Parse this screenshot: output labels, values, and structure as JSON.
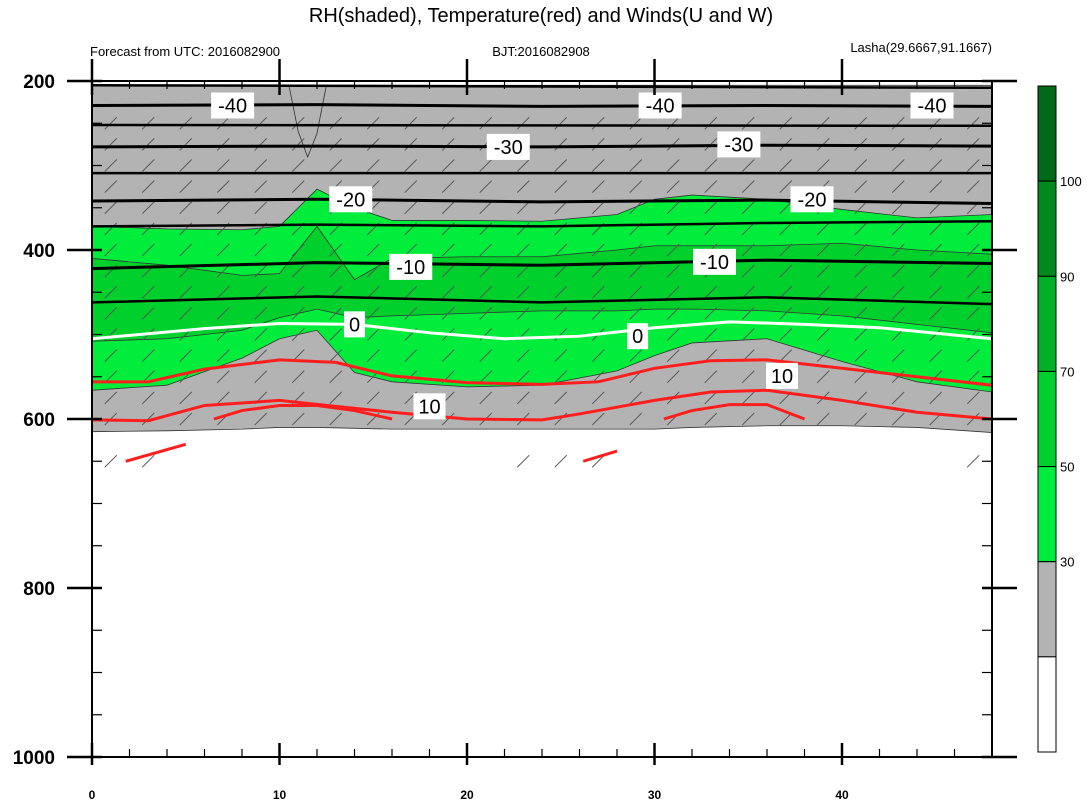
{
  "chart_data": {
    "type": "contour-cross-section",
    "title": "RH(shaded), Temperature(red) and Winds(U and W)",
    "subtitle_left": "Forecast from UTC: 2016082900",
    "subtitle_center": "BJT:2016082908",
    "subtitle_right": "Lasha(29.6667,91.1667)",
    "x_ticks": [
      0,
      10,
      20,
      30,
      40
    ],
    "y_ticks": [
      200,
      400,
      600,
      800,
      1000
    ],
    "xlim": [
      0,
      48
    ],
    "ylim": [
      200,
      1000
    ],
    "y_inverted": true,
    "x_minor_step": 2,
    "y_minor_step": 50,
    "colorbar": {
      "levels": [
        30,
        50,
        70,
        90,
        100
      ],
      "colors": [
        "#ffffff",
        "#b3b3b3",
        "#00ee3b",
        "#00d02c",
        "#00b026",
        "#008a1e",
        "#006a17"
      ]
    },
    "rh_regions": [
      {
        "level": 30,
        "color": "#b3b3b3",
        "x": [
          0,
          4,
          8,
          10,
          12,
          16,
          20,
          22,
          26,
          30,
          32,
          36,
          40,
          44,
          48
        ],
        "top": [
          205,
          205,
          205,
          205,
          205,
          205,
          205,
          205,
          205,
          205,
          205,
          205,
          205,
          205,
          205
        ],
        "bottom": [
          615,
          614,
          612,
          610,
          610,
          612,
          612,
          612,
          612,
          612,
          610,
          608,
          608,
          610,
          616
        ]
      },
      {
        "level": 50,
        "color": "#00ee3b",
        "x": [
          0,
          4,
          8,
          10,
          12,
          14,
          16,
          20,
          24,
          28,
          30,
          32,
          36,
          40,
          44,
          48
        ],
        "top": [
          372,
          375,
          376,
          372,
          328,
          350,
          365,
          365,
          366,
          358,
          340,
          335,
          340,
          352,
          362,
          358
        ],
        "bottom": [
          566,
          560,
          528,
          505,
          495,
          545,
          556,
          562,
          560,
          543,
          525,
          510,
          505,
          532,
          556,
          568
        ]
      },
      {
        "level": 70,
        "color": "#00d02c",
        "x": [
          0,
          4,
          8,
          10,
          12,
          14,
          16,
          20,
          24,
          28,
          30,
          32,
          36,
          40,
          44,
          48
        ],
        "top": [
          410,
          418,
          430,
          428,
          372,
          435,
          410,
          408,
          408,
          400,
          395,
          395,
          395,
          392,
          400,
          405
        ],
        "bottom": [
          508,
          505,
          495,
          480,
          470,
          480,
          478,
          475,
          472,
          472,
          470,
          470,
          472,
          478,
          488,
          498
        ]
      }
    ],
    "gray_patches": [
      {
        "x": [
          10.5,
          11,
          11.5,
          12,
          12.5
        ],
        "top": [
          205,
          205,
          205,
          205,
          205
        ],
        "bottom": [
          205,
          260,
          290,
          262,
          205
        ]
      }
    ],
    "temperature_lines": [
      {
        "value": -40,
        "color": "#000000",
        "labeled": true,
        "x": [
          0,
          12,
          24,
          36,
          48
        ],
        "y": [
          229,
          228,
          230,
          229,
          230
        ]
      },
      {
        "value": -30,
        "color": "#000000",
        "labeled": true,
        "x": [
          0,
          12,
          24,
          36,
          48
        ],
        "y": [
          278,
          277,
          278,
          276,
          277
        ]
      },
      {
        "value": -20,
        "color": "#000000",
        "labeled": true,
        "x": [
          0,
          12,
          24,
          36,
          48
        ],
        "y": [
          342,
          340,
          343,
          341,
          345
        ]
      },
      {
        "value": -10,
        "color": "#000000",
        "labeled": true,
        "x": [
          0,
          12,
          24,
          36,
          48
        ],
        "y": [
          422,
          415,
          418,
          412,
          416
        ]
      },
      {
        "value": 0,
        "color": "#ffffff",
        "labeled": true,
        "x": [
          0,
          6,
          10,
          14,
          18,
          22,
          26,
          30,
          34,
          38,
          42,
          48
        ],
        "y": [
          505,
          493,
          487,
          488,
          498,
          505,
          502,
          492,
          485,
          488,
          492,
          505
        ]
      },
      {
        "value": 10,
        "color": "#ff1e1e",
        "labeled": true,
        "x": [
          0,
          3,
          6,
          10,
          13,
          16,
          20,
          24,
          27,
          30,
          33,
          36,
          40,
          44,
          48
        ],
        "y": [
          556,
          556,
          541,
          530,
          533,
          549,
          557,
          559,
          556,
          540,
          531,
          530,
          540,
          550,
          560
        ]
      }
    ],
    "extra_lines": [
      {
        "color": "#000000",
        "width": 2.5,
        "x": [
          0,
          48
        ],
        "y": [
          205,
          208
        ]
      },
      {
        "color": "#000000",
        "width": 2.5,
        "x": [
          0,
          48
        ],
        "y": [
          252,
          253
        ]
      },
      {
        "color": "#000000",
        "width": 2.5,
        "x": [
          0,
          48
        ],
        "y": [
          309,
          309
        ]
      },
      {
        "color": "#000000",
        "width": 2.5,
        "x": [
          0,
          12,
          24,
          36,
          48
        ],
        "y": [
          372,
          370,
          372,
          368,
          366
        ]
      },
      {
        "color": "#000000",
        "width": 2.5,
        "x": [
          0,
          12,
          24,
          36,
          48
        ],
        "y": [
          462,
          455,
          462,
          456,
          464
        ]
      },
      {
        "color": "#ff1e1e",
        "width": 3,
        "x": [
          0,
          3,
          6,
          10,
          13,
          16,
          20,
          24,
          26,
          30,
          33,
          36,
          40,
          44,
          48
        ],
        "y": [
          601,
          602,
          584,
          578,
          585,
          592,
          600,
          601,
          594,
          578,
          568,
          566,
          578,
          592,
          600
        ]
      },
      {
        "color": "#ff1e1e",
        "width": 3,
        "x": [
          6.5,
          8,
          10,
          12,
          14,
          16
        ],
        "y": [
          600,
          590,
          584,
          584,
          590,
          600
        ]
      },
      {
        "color": "#ff1e1e",
        "width": 3,
        "x": [
          30.5,
          32,
          34,
          36,
          38
        ],
        "y": [
          600,
          590,
          583,
          583,
          600
        ]
      },
      {
        "color": "#ff1e1e",
        "width": 3,
        "x": [
          1.8,
          5
        ],
        "y": [
          650,
          630
        ]
      },
      {
        "color": "#ff1e1e",
        "width": 3,
        "x": [
          26.2,
          28
        ],
        "y": [
          650,
          638
        ]
      }
    ],
    "contour_labels": [
      {
        "text": "-40",
        "x": 7.5,
        "y": 229
      },
      {
        "text": "-40",
        "x": 30.3,
        "y": 229
      },
      {
        "text": "-40",
        "x": 44.8,
        "y": 229
      },
      {
        "text": "-30",
        "x": 22.2,
        "y": 278
      },
      {
        "text": "-30",
        "x": 34.5,
        "y": 275
      },
      {
        "text": "-20",
        "x": 13.8,
        "y": 340
      },
      {
        "text": "-20",
        "x": 38.4,
        "y": 340
      },
      {
        "text": "-10",
        "x": 17,
        "y": 420
      },
      {
        "text": "-10",
        "x": 33.2,
        "y": 414
      },
      {
        "text": "0",
        "x": 14,
        "y": 488
      },
      {
        "text": "0",
        "x": 29.1,
        "y": 502
      },
      {
        "text": "10",
        "x": 18,
        "y": 585
      },
      {
        "text": "10",
        "x": 36.8,
        "y": 549
      }
    ]
  }
}
